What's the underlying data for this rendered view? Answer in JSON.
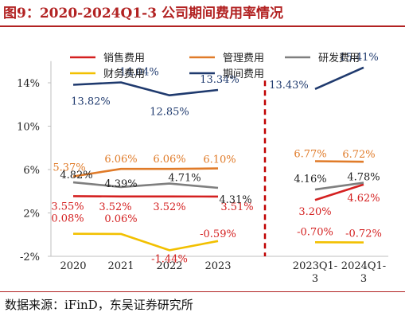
{
  "figure": {
    "title": "图9：2020-2024Q1-3 公司期间费用率情况",
    "source": "数据来源：iFinD，东吴证券研究所"
  },
  "chart_data": {
    "type": "line",
    "categories": [
      "2020",
      "2021",
      "2022",
      "2023",
      "2023Q1-3",
      "2024Q1-3"
    ],
    "x_tick_labels": [
      [
        "2020"
      ],
      [
        "2021"
      ],
      [
        "2022"
      ],
      [
        "2023"
      ],
      [
        "2023Q1-",
        "3"
      ],
      [
        "2024Q1-",
        "3"
      ]
    ],
    "y_ticks": [
      -2,
      2,
      6,
      10,
      14
    ],
    "y_tick_labels": [
      "-2%",
      "2%",
      "6%",
      "10%",
      "14%"
    ],
    "ylim": [
      -2,
      16
    ],
    "grid": false,
    "divider": {
      "between": [
        3,
        4
      ],
      "color": "#c00000",
      "style": "dashed"
    },
    "legend_position": "top",
    "series": [
      {
        "name": "销售费用",
        "color": "#d42020",
        "values": [
          3.55,
          3.52,
          3.52,
          3.51,
          3.2,
          4.62
        ],
        "labels": [
          "3.55%",
          "3.52%",
          "3.52%",
          "3.51%",
          "3.20%",
          "4.62%"
        ]
      },
      {
        "name": "管理费用",
        "color": "#e07b29",
        "values": [
          5.37,
          6.06,
          6.06,
          6.1,
          6.77,
          6.72
        ],
        "labels": [
          "5.37%",
          "6.06%",
          "6.06%",
          "6.10%",
          "6.77%",
          "6.72%"
        ]
      },
      {
        "name": "研发费用",
        "color": "#7f7f7f",
        "values": [
          4.82,
          4.39,
          4.71,
          4.31,
          4.16,
          4.78
        ],
        "labels": [
          "4.82%",
          "4.39%",
          "4.71%",
          "4.31%",
          "4.16%",
          "4.78%"
        ]
      },
      {
        "name": "财务费用",
        "color": "#f2c000",
        "values": [
          0.08,
          0.06,
          -1.44,
          -0.59,
          -0.7,
          -0.72
        ],
        "labels": [
          "0.08%",
          "0.06%",
          "-1.44%",
          "-0.59%",
          "-0.70%",
          "-0.72%"
        ]
      },
      {
        "name": "期间费用",
        "color": "#1f3a6e",
        "values": [
          13.82,
          14.04,
          12.85,
          13.34,
          13.43,
          15.41
        ],
        "labels": [
          "13.82%",
          "14.04%",
          "12.85%",
          "13.34%",
          "13.43%",
          "15.41%"
        ]
      }
    ]
  }
}
